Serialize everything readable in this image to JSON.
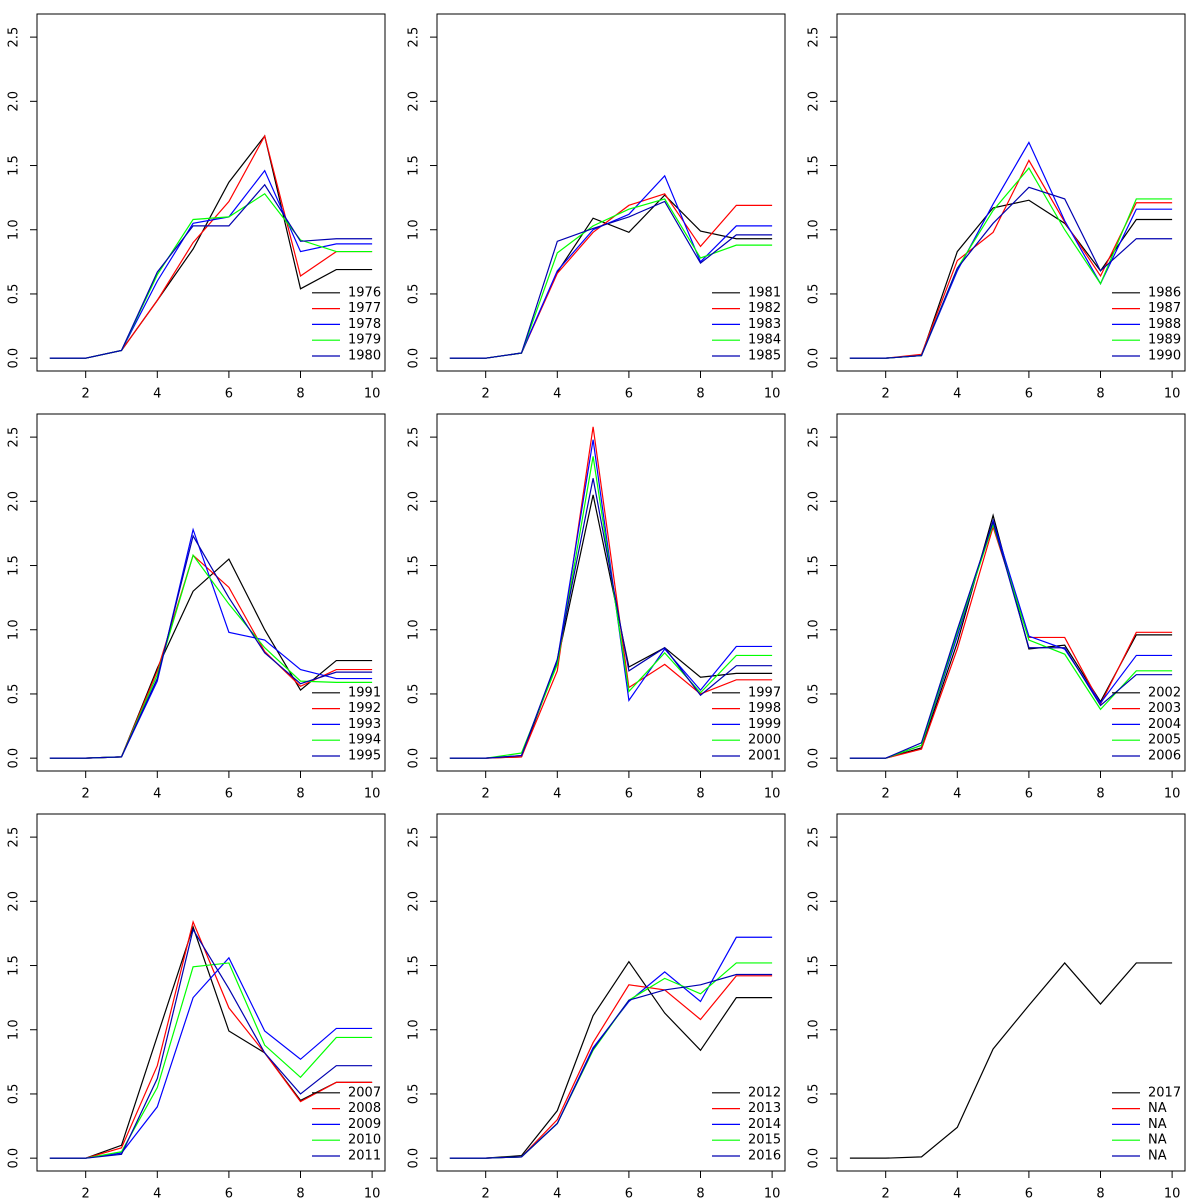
{
  "chart_data": [
    {
      "type": "line",
      "x": [
        1,
        2,
        3,
        4,
        5,
        6,
        7,
        8,
        9,
        10
      ],
      "xlim": [
        0.64,
        10.36
      ],
      "ylim": [
        -0.1,
        2.68
      ],
      "xticks": [
        2,
        4,
        6,
        8,
        10
      ],
      "yticks": [
        {
          "value": 0,
          "label": "0.0"
        },
        0.5,
        {
          "value": 1,
          "label": "1.0"
        },
        1.5,
        {
          "value": 2,
          "label": "2.0"
        },
        2.5
      ],
      "legend": "bottomright",
      "series": [
        {
          "name": "1976",
          "color": "#000000",
          "values": [
            0,
            0,
            0.06,
            0.45,
            0.85,
            1.37,
            1.73,
            0.54,
            0.69,
            0.69
          ]
        },
        {
          "name": "1977",
          "color": "#ff0000",
          "values": [
            0,
            0,
            0.06,
            0.45,
            0.9,
            1.22,
            1.73,
            0.64,
            0.83,
            0.83
          ]
        },
        {
          "name": "1978",
          "color": "#0000ff",
          "values": [
            0,
            0,
            0.06,
            0.6,
            1.05,
            1.1,
            1.46,
            0.83,
            0.89,
            0.89
          ]
        },
        {
          "name": "1979",
          "color": "#00ff00",
          "values": [
            0,
            0,
            0.06,
            0.65,
            1.08,
            1.1,
            1.28,
            0.92,
            0.83,
            0.83
          ]
        },
        {
          "name": "1980",
          "color": "#0000b0",
          "values": [
            0,
            0,
            0.06,
            0.67,
            1.03,
            1.03,
            1.35,
            0.91,
            0.93,
            0.93
          ]
        }
      ]
    },
    {
      "type": "line",
      "x": [
        1,
        2,
        3,
        4,
        5,
        6,
        7,
        8,
        9,
        10
      ],
      "xlim": [
        0.64,
        10.36
      ],
      "ylim": [
        -0.1,
        2.68
      ],
      "xticks": [
        2,
        4,
        6,
        8,
        10
      ],
      "yticks": [
        {
          "value": 0,
          "label": "0.0"
        },
        0.5,
        {
          "value": 1,
          "label": "1.0"
        },
        1.5,
        {
          "value": 2,
          "label": "2.0"
        },
        2.5
      ],
      "legend": "bottomright",
      "series": [
        {
          "name": "1981",
          "color": "#000000",
          "values": [
            0,
            0,
            0.04,
            0.67,
            1.09,
            0.98,
            1.27,
            0.99,
            0.93,
            0.93
          ]
        },
        {
          "name": "1982",
          "color": "#ff0000",
          "values": [
            0,
            0,
            0.04,
            0.66,
            0.98,
            1.19,
            1.28,
            0.87,
            1.19,
            1.19
          ]
        },
        {
          "name": "1983",
          "color": "#0000ff",
          "values": [
            0,
            0,
            0.04,
            0.68,
            1.0,
            1.12,
            1.42,
            0.75,
            1.03,
            1.03
          ]
        },
        {
          "name": "1984",
          "color": "#00ff00",
          "values": [
            0,
            0,
            0.04,
            0.82,
            1.03,
            1.16,
            1.24,
            0.78,
            0.88,
            0.88
          ]
        },
        {
          "name": "1985",
          "color": "#0000b0",
          "values": [
            0,
            0,
            0.04,
            0.91,
            1.01,
            1.1,
            1.22,
            0.74,
            0.96,
            0.96
          ]
        }
      ]
    },
    {
      "type": "line",
      "x": [
        1,
        2,
        3,
        4,
        5,
        6,
        7,
        8,
        9,
        10
      ],
      "xlim": [
        0.64,
        10.36
      ],
      "ylim": [
        -0.1,
        2.68
      ],
      "xticks": [
        2,
        4,
        6,
        8,
        10
      ],
      "yticks": [
        {
          "value": 0,
          "label": "0.0"
        },
        0.5,
        {
          "value": 1,
          "label": "1.0"
        },
        1.5,
        {
          "value": 2,
          "label": "2.0"
        },
        2.5
      ],
      "legend": "bottomright",
      "series": [
        {
          "name": "1986",
          "color": "#000000",
          "values": [
            0,
            0,
            0.02,
            0.83,
            1.17,
            1.23,
            1.05,
            0.68,
            1.08,
            1.08
          ]
        },
        {
          "name": "1987",
          "color": "#ff0000",
          "values": [
            0,
            0,
            0.03,
            0.76,
            0.98,
            1.54,
            1.06,
            0.64,
            1.21,
            1.21
          ]
        },
        {
          "name": "1988",
          "color": "#0000ff",
          "values": [
            0,
            0,
            0.02,
            0.68,
            1.2,
            1.68,
            1.07,
            0.58,
            1.16,
            1.16
          ]
        },
        {
          "name": "1989",
          "color": "#00ff00",
          "values": [
            0,
            0,
            0.02,
            0.7,
            1.15,
            1.48,
            1.0,
            0.58,
            1.24,
            1.24
          ]
        },
        {
          "name": "1990",
          "color": "#0000b0",
          "values": [
            0,
            0,
            0.02,
            0.7,
            1.05,
            1.33,
            1.24,
            0.68,
            0.93,
            0.93
          ]
        }
      ]
    },
    {
      "type": "line",
      "x": [
        1,
        2,
        3,
        4,
        5,
        6,
        7,
        8,
        9,
        10
      ],
      "xlim": [
        0.64,
        10.36
      ],
      "ylim": [
        -0.1,
        2.68
      ],
      "xticks": [
        2,
        4,
        6,
        8,
        10
      ],
      "yticks": [
        {
          "value": 0,
          "label": "0.0"
        },
        0.5,
        {
          "value": 1,
          "label": "1.0"
        },
        1.5,
        {
          "value": 2,
          "label": "2.0"
        },
        2.5
      ],
      "legend": "bottomright",
      "series": [
        {
          "name": "1991",
          "color": "#000000",
          "values": [
            0,
            0,
            0.01,
            0.7,
            1.3,
            1.55,
            1.0,
            0.53,
            0.76,
            0.76
          ]
        },
        {
          "name": "1992",
          "color": "#ff0000",
          "values": [
            0,
            0,
            0.01,
            0.68,
            1.58,
            1.33,
            0.83,
            0.56,
            0.69,
            0.69
          ]
        },
        {
          "name": "1993",
          "color": "#0000ff",
          "values": [
            0,
            0,
            0.01,
            0.6,
            1.78,
            0.98,
            0.92,
            0.69,
            0.62,
            0.62
          ]
        },
        {
          "name": "1994",
          "color": "#00ff00",
          "values": [
            0,
            0,
            0.01,
            0.65,
            1.58,
            1.2,
            0.86,
            0.6,
            0.59,
            0.59
          ]
        },
        {
          "name": "1995",
          "color": "#0000b0",
          "values": [
            0,
            0,
            0.01,
            0.62,
            1.73,
            1.25,
            0.82,
            0.58,
            0.67,
            0.67
          ]
        }
      ]
    },
    {
      "type": "line",
      "x": [
        1,
        2,
        3,
        4,
        5,
        6,
        7,
        8,
        9,
        10
      ],
      "xlim": [
        0.64,
        10.36
      ],
      "ylim": [
        -0.1,
        2.68
      ],
      "xticks": [
        2,
        4,
        6,
        8,
        10
      ],
      "yticks": [
        {
          "value": 0,
          "label": "0.0"
        },
        0.5,
        {
          "value": 1,
          "label": "1.0"
        },
        1.5,
        {
          "value": 2,
          "label": "2.0"
        },
        2.5
      ],
      "legend": "bottomright",
      "series": [
        {
          "name": "1997",
          "color": "#000000",
          "values": [
            0,
            0,
            0.01,
            0.75,
            2.05,
            0.71,
            0.86,
            0.63,
            0.66,
            0.66
          ]
        },
        {
          "name": "1998",
          "color": "#ff0000",
          "values": [
            0,
            0,
            0.01,
            0.68,
            2.58,
            0.55,
            0.73,
            0.5,
            0.61,
            0.61
          ]
        },
        {
          "name": "1999",
          "color": "#0000ff",
          "values": [
            0,
            0,
            0.02,
            0.76,
            2.48,
            0.45,
            0.85,
            0.53,
            0.87,
            0.87
          ]
        },
        {
          "name": "2000",
          "color": "#00ff00",
          "values": [
            0,
            0,
            0.04,
            0.73,
            2.35,
            0.52,
            0.82,
            0.51,
            0.8,
            0.8
          ]
        },
        {
          "name": "2001",
          "color": "#0000b0",
          "values": [
            0,
            0,
            0.02,
            0.77,
            2.18,
            0.68,
            0.86,
            0.49,
            0.72,
            0.72
          ]
        }
      ]
    },
    {
      "type": "line",
      "x": [
        1,
        2,
        3,
        4,
        5,
        6,
        7,
        8,
        9,
        10
      ],
      "xlim": [
        0.64,
        10.36
      ],
      "ylim": [
        -0.1,
        2.68
      ],
      "xticks": [
        2,
        4,
        6,
        8,
        10
      ],
      "yticks": [
        {
          "value": 0,
          "label": "0.0"
        },
        0.5,
        {
          "value": 1,
          "label": "1.0"
        },
        1.5,
        {
          "value": 2,
          "label": "2.0"
        },
        2.5
      ],
      "legend": "bottomright",
      "series": [
        {
          "name": "2002",
          "color": "#000000",
          "values": [
            0,
            0,
            0.08,
            0.9,
            1.89,
            0.85,
            0.88,
            0.44,
            0.96,
            0.96
          ]
        },
        {
          "name": "2003",
          "color": "#ff0000",
          "values": [
            0,
            0,
            0.07,
            0.85,
            1.8,
            0.94,
            0.94,
            0.42,
            0.98,
            0.98
          ]
        },
        {
          "name": "2004",
          "color": "#0000ff",
          "values": [
            0,
            0,
            0.1,
            0.95,
            1.85,
            0.95,
            0.85,
            0.43,
            0.8,
            0.8
          ]
        },
        {
          "name": "2005",
          "color": "#00ff00",
          "values": [
            0,
            0,
            0.1,
            0.98,
            1.82,
            0.92,
            0.81,
            0.38,
            0.68,
            0.68
          ]
        },
        {
          "name": "2006",
          "color": "#0000b0",
          "values": [
            0,
            0,
            0.12,
            1.0,
            1.84,
            0.86,
            0.86,
            0.41,
            0.65,
            0.65
          ]
        }
      ]
    },
    {
      "type": "line",
      "x": [
        1,
        2,
        3,
        4,
        5,
        6,
        7,
        8,
        9,
        10
      ],
      "xlim": [
        0.64,
        10.36
      ],
      "ylim": [
        -0.1,
        2.68
      ],
      "xticks": [
        2,
        4,
        6,
        8,
        10
      ],
      "yticks": [
        {
          "value": 0,
          "label": "0.0"
        },
        0.5,
        {
          "value": 1,
          "label": "1.0"
        },
        1.5,
        {
          "value": 2,
          "label": "2.0"
        },
        2.5
      ],
      "legend": "bottomright",
      "series": [
        {
          "name": "2007",
          "color": "#000000",
          "values": [
            0,
            0,
            0.1,
            0.95,
            1.8,
            0.99,
            0.82,
            0.45,
            0.59,
            0.59
          ]
        },
        {
          "name": "2008",
          "color": "#ff0000",
          "values": [
            0,
            0,
            0.08,
            0.72,
            1.84,
            1.17,
            0.82,
            0.44,
            0.59,
            0.59
          ]
        },
        {
          "name": "2009",
          "color": "#0000ff",
          "values": [
            0,
            0,
            0.04,
            0.4,
            1.25,
            1.56,
            0.99,
            0.77,
            1.01,
            1.01
          ]
        },
        {
          "name": "2010",
          "color": "#00ff00",
          "values": [
            0,
            0,
            0.05,
            0.55,
            1.49,
            1.52,
            0.88,
            0.63,
            0.94,
            0.94
          ]
        },
        {
          "name": "2011",
          "color": "#0000b0",
          "values": [
            0,
            0,
            0.03,
            0.62,
            1.78,
            1.32,
            0.82,
            0.5,
            0.72,
            0.72
          ]
        }
      ]
    },
    {
      "type": "line",
      "x": [
        1,
        2,
        3,
        4,
        5,
        6,
        7,
        8,
        9,
        10
      ],
      "xlim": [
        0.64,
        10.36
      ],
      "ylim": [
        -0.1,
        2.68
      ],
      "xticks": [
        2,
        4,
        6,
        8,
        10
      ],
      "yticks": [
        {
          "value": 0,
          "label": "0.0"
        },
        0.5,
        {
          "value": 1,
          "label": "1.0"
        },
        1.5,
        {
          "value": 2,
          "label": "2.0"
        },
        2.5
      ],
      "legend": "bottomright",
      "series": [
        {
          "name": "2012",
          "color": "#000000",
          "values": [
            0,
            0,
            0.02,
            0.37,
            1.11,
            1.53,
            1.13,
            0.84,
            1.25,
            1.25
          ]
        },
        {
          "name": "2013",
          "color": "#ff0000",
          "values": [
            0,
            0,
            0.01,
            0.3,
            0.9,
            1.35,
            1.31,
            1.08,
            1.42,
            1.42
          ]
        },
        {
          "name": "2014",
          "color": "#0000ff",
          "values": [
            0,
            0,
            0.01,
            0.27,
            0.86,
            1.22,
            1.45,
            1.22,
            1.72,
            1.72
          ]
        },
        {
          "name": "2015",
          "color": "#00ff00",
          "values": [
            0,
            0,
            0.01,
            0.27,
            0.84,
            1.23,
            1.4,
            1.28,
            1.52,
            1.52
          ]
        },
        {
          "name": "2016",
          "color": "#0000b0",
          "values": [
            0,
            0,
            0.01,
            0.27,
            0.85,
            1.23,
            1.31,
            1.35,
            1.43,
            1.43
          ]
        }
      ]
    },
    {
      "type": "line",
      "x": [
        1,
        2,
        3,
        4,
        5,
        6,
        7,
        8,
        9,
        10
      ],
      "xlim": [
        0.64,
        10.36
      ],
      "ylim": [
        -0.1,
        2.68
      ],
      "xticks": [
        2,
        4,
        6,
        8,
        10
      ],
      "yticks": [
        {
          "value": 0,
          "label": "0.0"
        },
        0.5,
        {
          "value": 1,
          "label": "1.0"
        },
        1.5,
        {
          "value": 2,
          "label": "2.0"
        },
        2.5
      ],
      "legend": "bottomright",
      "series": [
        {
          "name": "2017",
          "color": "#000000",
          "values": [
            0,
            0,
            0.01,
            0.24,
            0.85,
            1.19,
            1.52,
            1.2,
            1.52,
            1.52
          ]
        },
        {
          "name": "NA",
          "color": "#ff0000",
          "values": [
            null,
            null,
            null,
            null,
            null,
            null,
            null,
            null,
            null,
            null
          ]
        },
        {
          "name": "NA",
          "color": "#0000ff",
          "values": [
            null,
            null,
            null,
            null,
            null,
            null,
            null,
            null,
            null,
            null
          ]
        },
        {
          "name": "NA",
          "color": "#00ff00",
          "values": [
            null,
            null,
            null,
            null,
            null,
            null,
            null,
            null,
            null,
            null
          ]
        },
        {
          "name": "NA",
          "color": "#0000b0",
          "values": [
            null,
            null,
            null,
            null,
            null,
            null,
            null,
            null,
            null,
            null
          ]
        }
      ]
    }
  ]
}
